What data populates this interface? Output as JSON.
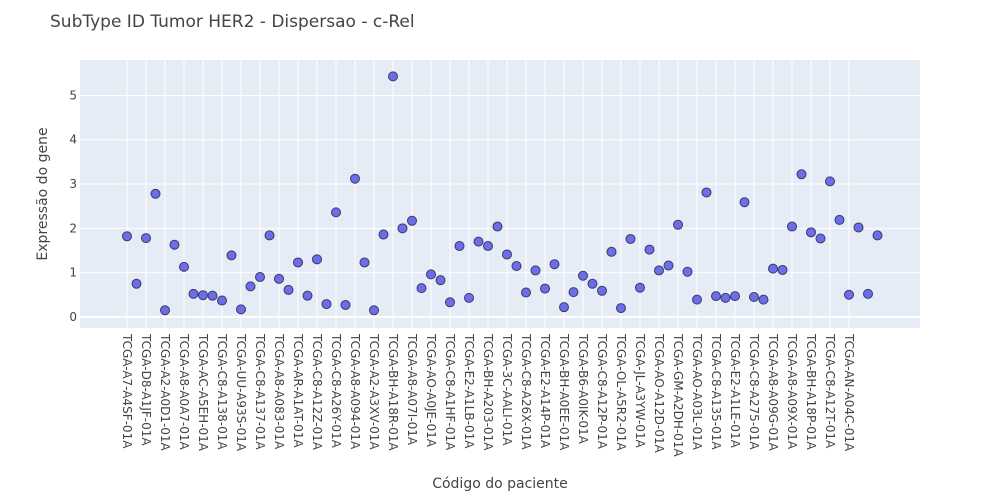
{
  "chart_data": {
    "type": "scatter",
    "title": "SubType ID Tumor HER2 - Dispersao - c-Rel",
    "xlabel": "Código do paciente",
    "ylabel": "Expressão do gene",
    "ylim": [
      -0.25,
      5.8
    ],
    "yticks": [
      0,
      1,
      2,
      3,
      4,
      5
    ],
    "grid": true,
    "legend": "none",
    "x_labels_shown": [
      "TCGA-A7-A4SF-01A",
      "TCGA-D8-A1JF-01A",
      "TCGA-A2-A0D1-01A",
      "TCGA-A8-A0A7-01A",
      "TCGA-AC-A5EH-01A",
      "TCGA-C8-A138-01A",
      "TCGA-UU-A93S-01A",
      "TCGA-C8-A137-01A",
      "TCGA-A8-A083-01A",
      "TCGA-AR-A1AT-01A",
      "TCGA-C8-A12Z-01A",
      "TCGA-C8-A26Y-01A",
      "TCGA-A8-A094-01A",
      "TCGA-A2-A3XV-01A",
      "TCGA-BH-A18R-01A",
      "TCGA-A8-A07I-01A",
      "TCGA-AO-A0JE-01A",
      "TCGA-C8-A1HF-01A",
      "TCGA-E2-A1LB-01A",
      "TCGA-BH-A203-01A",
      "TCGA-3C-AALI-01A",
      "TCGA-C8-A26X-01A",
      "TCGA-E2-A14P-01A",
      "TCGA-BH-A0EE-01A",
      "TCGA-B6-A0IK-01A",
      "TCGA-C8-A12P-01A",
      "TCGA-OL-A5R2-01A",
      "TCGA-JL-A3YW-01A",
      "TCGA-AO-A12D-01A",
      "TCGA-GM-A2DH-01A",
      "TCGA-AO-A03L-01A",
      "TCGA-C8-A135-01A",
      "TCGA-E2-A1LE-01A",
      "TCGA-C8-A275-01A",
      "TCGA-A8-A09G-01A",
      "TCGA-A8-A09X-01A",
      "TCGA-BH-A18P-01A",
      "TCGA-C8-A12T-01A",
      "TCGA-AN-A04C-01A"
    ],
    "y": [
      1.82,
      0.75,
      1.78,
      2.78,
      0.15,
      1.63,
      1.13,
      0.52,
      0.49,
      0.48,
      0.37,
      1.39,
      0.17,
      0.69,
      0.9,
      1.84,
      0.86,
      0.61,
      1.23,
      0.48,
      1.3,
      0.29,
      2.36,
      0.27,
      3.12,
      1.23,
      0.15,
      1.86,
      5.43,
      2.0,
      2.17,
      0.65,
      0.96,
      0.83,
      0.33,
      1.6,
      0.43,
      1.7,
      1.6,
      2.04,
      1.41,
      1.15,
      0.55,
      1.05,
      0.64,
      1.19,
      0.22,
      0.56,
      0.93,
      0.75,
      0.59,
      1.47,
      0.2,
      1.76,
      0.66,
      1.52,
      1.05,
      1.16,
      2.08,
      1.02,
      0.39,
      2.81,
      0.47,
      0.43,
      0.47,
      2.59,
      0.45,
      0.39,
      1.09,
      1.06,
      2.04,
      3.22,
      1.91,
      1.77,
      3.06,
      2.19,
      0.5,
      2.02,
      0.52,
      1.84
    ],
    "marker_color": "#6b6ee6",
    "marker_edge_color": "#3a3a6a",
    "plot_bg": "#e5ecf6",
    "grid_color": "#ffffff"
  }
}
